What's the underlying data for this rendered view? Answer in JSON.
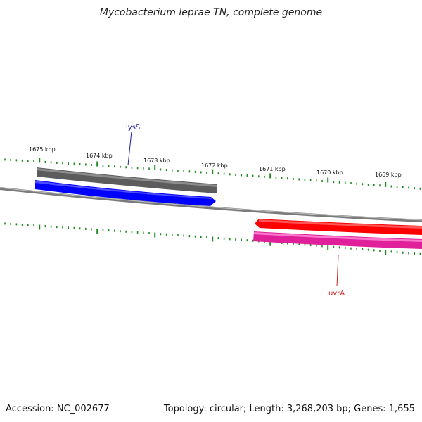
{
  "header": {
    "title": "Mycobacterium leprae TN, complete genome"
  },
  "footer": {
    "accession": "Accession: NC_002677",
    "summary": "Topology: circular; Length: 3,268,203 bp; Genes: 1,655"
  },
  "map": {
    "tick_labels": [
      "1675 kbp",
      "1674 kbp",
      "1673 kbp",
      "1672 kbp",
      "1671 kbp",
      "1670 kbp",
      "1669 kbp"
    ],
    "genes": [
      {
        "name": "lysS",
        "strand": "forward",
        "color": "#0000ff"
      },
      {
        "name": "uvrA",
        "strand": "reverse",
        "color": "#ff0000"
      }
    ],
    "colors": {
      "backbone": "#7a7a7a",
      "ticks": "#1e8a1e",
      "gray_feature": "#5c5c5c",
      "pink_feature": "#e0209a"
    }
  }
}
